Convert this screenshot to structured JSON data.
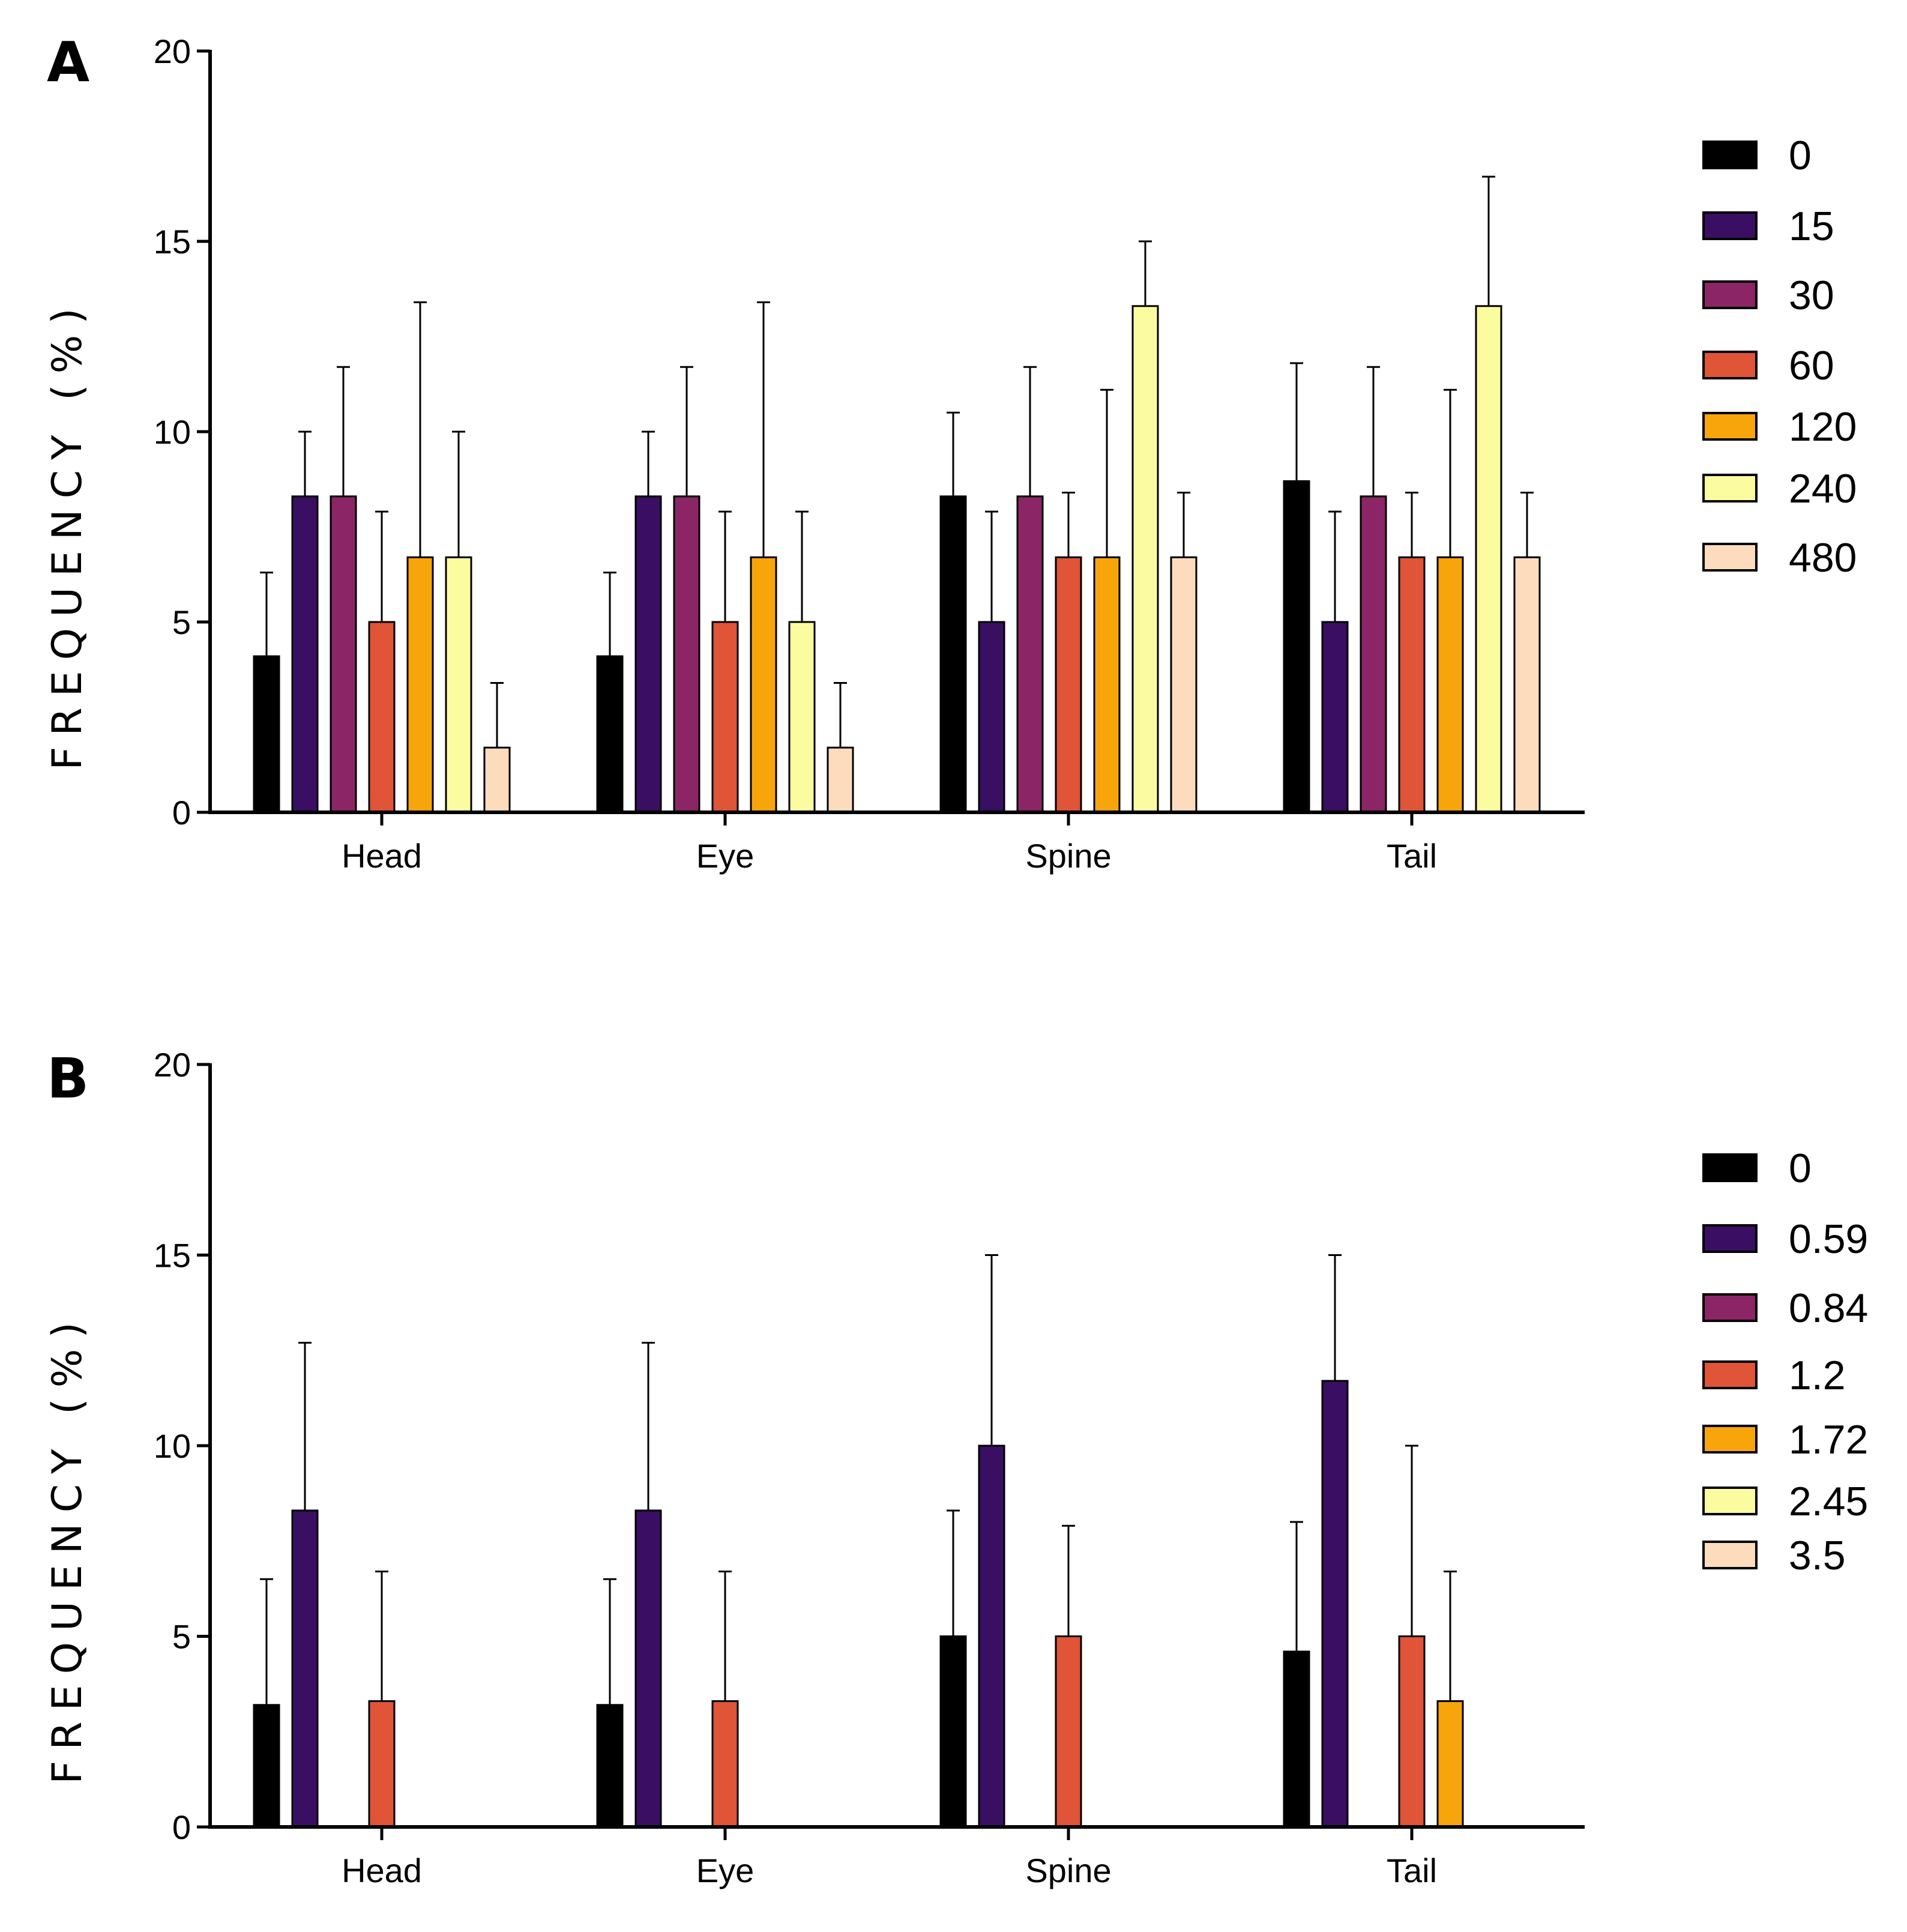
{
  "chart_data": [
    {
      "panel": "A",
      "type": "bar",
      "ylabel": "FREQUENCY (%)",
      "xlabel": "",
      "ylim": [
        0,
        20
      ],
      "yticks": [
        "0",
        "5",
        "10",
        "15",
        "20"
      ],
      "categories": [
        "Head",
        "Eye",
        "Spine",
        "Tail"
      ],
      "legend_position": "right",
      "series": [
        {
          "name": "0",
          "color": "#000000",
          "values": [
            4.1,
            4.1,
            8.3,
            8.7
          ],
          "errors": [
            2.2,
            2.2,
            2.2,
            3.1
          ]
        },
        {
          "name": "15",
          "color": "#3a0f63",
          "values": [
            8.3,
            8.3,
            5.0,
            5.0
          ],
          "errors": [
            1.7,
            1.7,
            2.9,
            2.9
          ]
        },
        {
          "name": "30",
          "color": "#8b2565",
          "values": [
            8.3,
            8.3,
            8.3,
            8.3
          ],
          "errors": [
            3.4,
            3.4,
            3.4,
            3.4
          ]
        },
        {
          "name": "60",
          "color": "#e05437",
          "values": [
            5.0,
            5.0,
            6.7,
            6.7
          ],
          "errors": [
            2.9,
            2.9,
            1.7,
            1.7
          ]
        },
        {
          "name": "120",
          "color": "#f8a50c",
          "values": [
            6.7,
            6.7,
            6.7,
            6.7
          ],
          "errors": [
            6.7,
            6.7,
            4.4,
            4.4
          ]
        },
        {
          "name": "240",
          "color": "#fbfca0",
          "values": [
            6.7,
            5.0,
            13.3,
            13.3
          ],
          "errors": [
            3.3,
            2.9,
            1.7,
            3.4
          ]
        },
        {
          "name": "480",
          "color": "#fcdcbc",
          "values": [
            1.7,
            1.7,
            6.7,
            6.7
          ],
          "errors": [
            1.7,
            1.7,
            1.7,
            1.7
          ]
        }
      ]
    },
    {
      "panel": "B",
      "type": "bar",
      "ylabel": "FREQUENCY (%)",
      "xlabel": "",
      "ylim": [
        0,
        20
      ],
      "yticks": [
        "0",
        "5",
        "10",
        "15",
        "20"
      ],
      "categories": [
        "Head",
        "Eye",
        "Spine",
        "Tail"
      ],
      "legend_position": "right",
      "series": [
        {
          "name": "0",
          "color": "#000000",
          "values": [
            3.2,
            3.2,
            5.0,
            4.6
          ],
          "errors": [
            3.3,
            3.3,
            3.3,
            3.4
          ]
        },
        {
          "name": "0.59",
          "color": "#3a0f63",
          "values": [
            8.3,
            8.3,
            10.0,
            11.7
          ],
          "errors": [
            4.4,
            4.4,
            5.0,
            3.3
          ]
        },
        {
          "name": "0.84",
          "color": "#8b2565",
          "values": [
            0,
            0,
            0,
            0
          ],
          "errors": [
            0,
            0,
            0,
            0
          ]
        },
        {
          "name": "1.2",
          "color": "#e05437",
          "values": [
            3.3,
            3.3,
            5.0,
            5.0
          ],
          "errors": [
            3.4,
            3.4,
            2.9,
            5.0
          ]
        },
        {
          "name": "1.72",
          "color": "#f8a50c",
          "values": [
            0,
            0,
            0,
            3.3
          ],
          "errors": [
            0,
            0,
            0,
            3.4
          ]
        },
        {
          "name": "2.45",
          "color": "#fbfca0",
          "values": [
            0,
            0,
            0,
            0
          ],
          "errors": [
            0,
            0,
            0,
            0
          ]
        },
        {
          "name": "3.5",
          "color": "#fcdcbc",
          "values": [
            0,
            0,
            0,
            0
          ],
          "errors": [
            0,
            0,
            0,
            0
          ]
        }
      ]
    }
  ]
}
